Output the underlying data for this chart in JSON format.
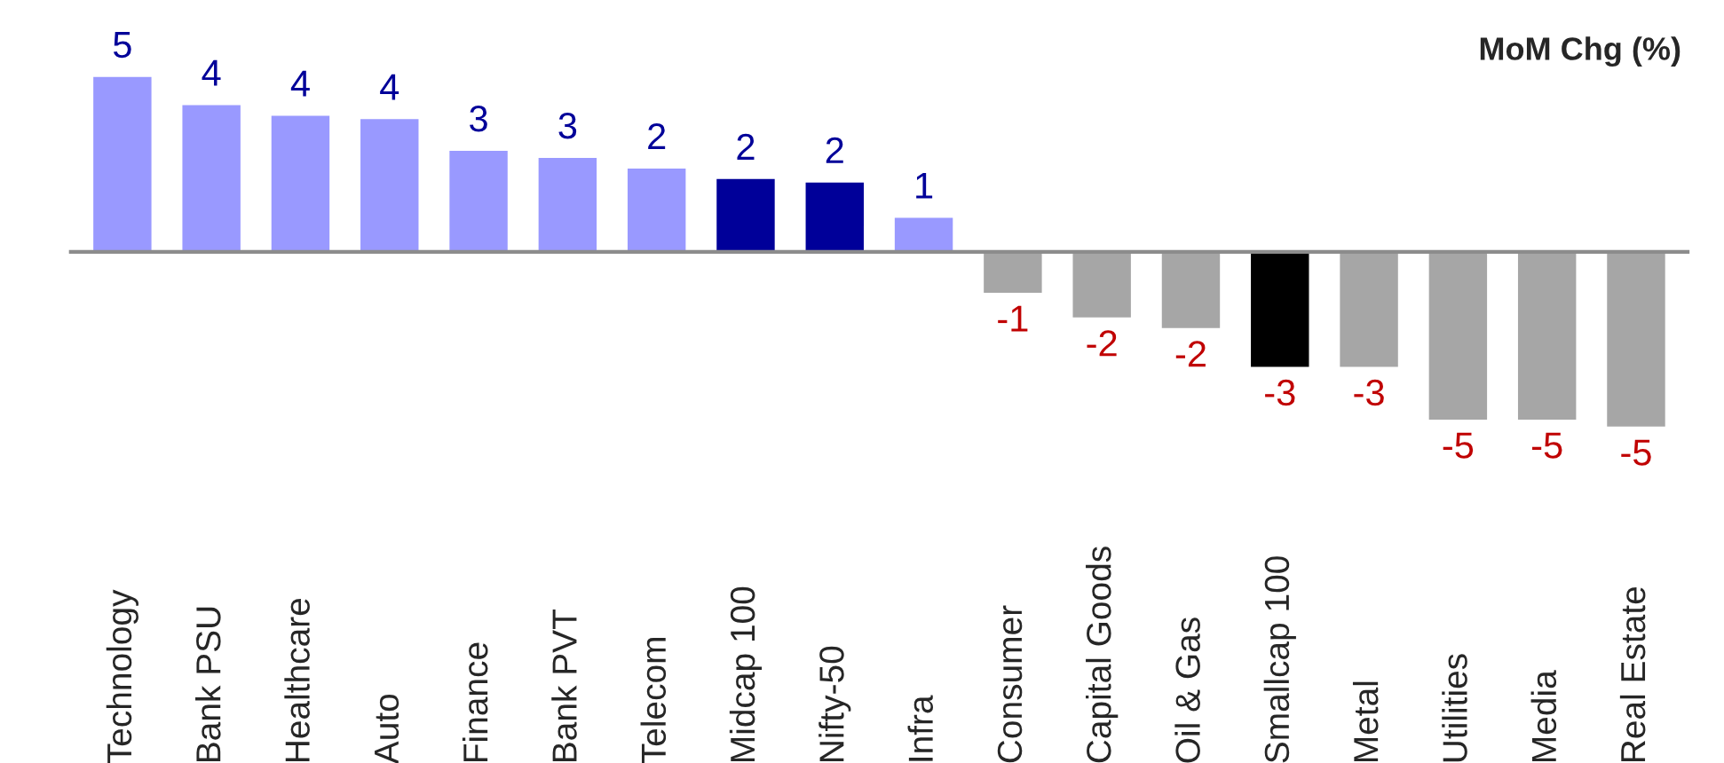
{
  "chart_data": {
    "type": "bar",
    "title": "MoM Chg (%)",
    "categories": [
      "Technology",
      "Bank PSU",
      "Healthcare",
      "Auto",
      "Finance",
      "Bank PVT",
      "Telecom",
      "Midcap 100",
      "Nifty-50",
      "Infra",
      "Consumer",
      "Capital Goods",
      "Oil & Gas",
      "Smallcap 100",
      "Metal",
      "Utilities",
      "Media",
      "Real Estate"
    ],
    "values": [
      5.0,
      4.2,
      3.9,
      3.8,
      2.9,
      2.7,
      2.4,
      2.1,
      2.0,
      1.0,
      -1.2,
      -1.9,
      -2.2,
      -3.3,
      -3.3,
      -4.8,
      -4.8,
      -5.0
    ],
    "colors": [
      "#9999ff",
      "#9999ff",
      "#9999ff",
      "#9999ff",
      "#9999ff",
      "#9999ff",
      "#9999ff",
      "#000099",
      "#000099",
      "#9999ff",
      "#a6a6a6",
      "#a6a6a6",
      "#a6a6a6",
      "#000000",
      "#a6a6a6",
      "#a6a6a6",
      "#a6a6a6",
      "#a6a6a6"
    ],
    "value_labels": [
      "5",
      "4",
      "4",
      "4",
      "3",
      "3",
      "2",
      "2",
      "2",
      "1",
      "-1",
      "-2",
      "-2",
      "-3",
      "-3",
      "-5",
      "-5",
      "-5"
    ],
    "grid": false,
    "legend": false
  }
}
